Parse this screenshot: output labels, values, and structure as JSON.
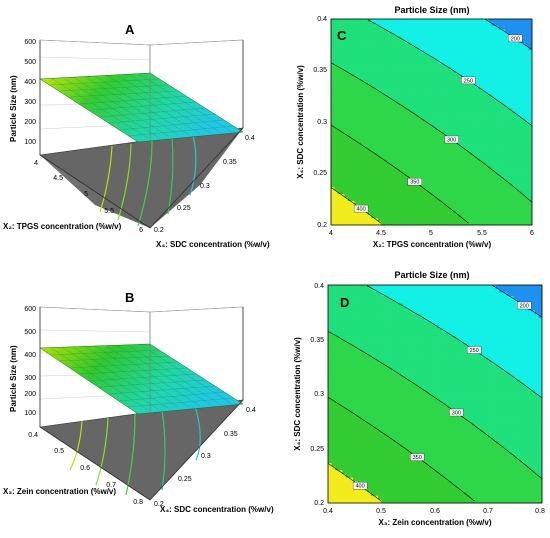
{
  "chart_data": [
    {
      "panel": "A",
      "type": "surface",
      "zlabel": "Particle Size (nm)",
      "xlabel": "X₂: TPGS concentration (%w/v)",
      "ylabel": "X₄: SDC concentration (%w/v)",
      "x_ticks": [
        "4",
        "4.5",
        "5",
        "5.5",
        "6"
      ],
      "y_ticks": [
        "0.2",
        "0.25",
        "0.3",
        "0.35",
        "0.4"
      ],
      "z_ticks": [
        "100",
        "200",
        "300",
        "400",
        "500",
        "600"
      ],
      "zlim": [
        100,
        600
      ],
      "corners": [
        {
          "x": 4,
          "y": 0.2,
          "z": 410
        },
        {
          "x": 6,
          "y": 0.2,
          "z": 300
        },
        {
          "x": 4,
          "y": 0.4,
          "z": 275
        },
        {
          "x": 6,
          "y": 0.4,
          "z": 175
        }
      ]
    },
    {
      "panel": "B",
      "type": "surface",
      "zlabel": "Particle Size (nm)",
      "xlabel": "X₃: Zein concentration (%w/v)",
      "ylabel": "X₄: SDC concentration (%w/v)",
      "x_ticks": [
        "0.4",
        "0.5",
        "0.6",
        "0.7",
        "0.8"
      ],
      "y_ticks": [
        "0.2",
        "0.25",
        "0.3",
        "0.35",
        "0.4"
      ],
      "z_ticks": [
        "100",
        "200",
        "300",
        "400",
        "500",
        "600"
      ],
      "zlim": [
        100,
        600
      ],
      "corners": [
        {
          "x": 0.4,
          "y": 0.2,
          "z": 405
        },
        {
          "x": 0.8,
          "y": 0.2,
          "z": 320
        },
        {
          "x": 0.4,
          "y": 0.4,
          "z": 270
        },
        {
          "x": 0.8,
          "y": 0.4,
          "z": 185
        }
      ]
    },
    {
      "panel": "C",
      "type": "contour",
      "title": "Particle Size (nm)",
      "xlabel": "X₂: TPGS concentration (%w/v)",
      "ylabel": "X₄: SDC concentration (%w/v)",
      "x_ticks": [
        "4",
        "4.5",
        "5",
        "5.5",
        "6"
      ],
      "y_ticks": [
        "0.2",
        "0.25",
        "0.3",
        "0.35",
        "0.4"
      ],
      "xlim": [
        4,
        6
      ],
      "ylim": [
        0.2,
        0.4
      ],
      "contour_labels": [
        "200",
        "250",
        "300",
        "350",
        "400"
      ],
      "contour_values": [
        200,
        250,
        300,
        350,
        400
      ]
    },
    {
      "panel": "D",
      "type": "contour",
      "title": "Particle Size (nm)",
      "xlabel": "X₃: Zein concentration (%w/v)",
      "ylabel": "X₄: SDC concentration (%w/v)",
      "x_ticks": [
        "0.4",
        "0.5",
        "0.6",
        "0.7",
        "0.8"
      ],
      "y_ticks": [
        "0.2",
        "0.25",
        "0.3",
        "0.35",
        "0.4"
      ],
      "xlim": [
        0.4,
        0.8
      ],
      "ylim": [
        0.2,
        0.4
      ],
      "contour_labels": [
        "200",
        "250",
        "300",
        "350",
        "400"
      ],
      "contour_values": [
        200,
        250,
        300,
        350,
        400
      ]
    }
  ]
}
